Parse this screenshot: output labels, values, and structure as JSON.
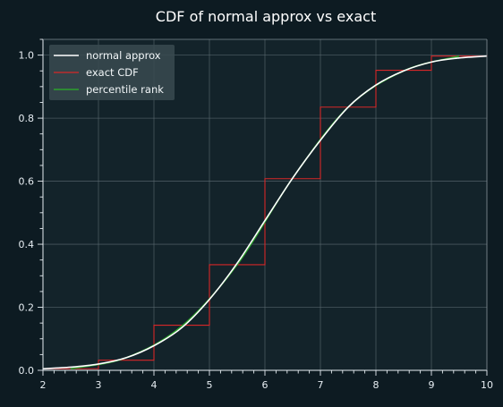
{
  "chart_data": {
    "type": "line",
    "title": "CDF of normal approx vs exact",
    "xlabel": "",
    "ylabel": "",
    "xlim": [
      2,
      10
    ],
    "ylim": [
      0,
      1.05
    ],
    "x_ticks": [
      2,
      3,
      4,
      5,
      6,
      7,
      8,
      9,
      10
    ],
    "x_tick_labels": [
      "2",
      "3",
      "4",
      "5",
      "6",
      "7",
      "8",
      "9",
      "10"
    ],
    "y_ticks": [
      0.0,
      0.2,
      0.4,
      0.6,
      0.8,
      1.0
    ],
    "y_tick_labels": [
      "0.0",
      "0.2",
      "0.4",
      "0.6",
      "0.8",
      "1.0"
    ],
    "grid": true,
    "legend_position": "top-left",
    "colors": {
      "background": "#0d1b22",
      "plot_background": "#13232a",
      "grid": "#5b6a70",
      "normal": "#ffffff",
      "exact": "#d62728",
      "percentile": "#2ca02c",
      "legend_background": "#3a4a50"
    },
    "series": [
      {
        "name": "normal approx",
        "style": "line",
        "color": "#ffffff",
        "x": [
          2.0,
          2.5,
          3.0,
          3.5,
          4.0,
          4.5,
          5.0,
          5.5,
          6.0,
          6.5,
          7.0,
          7.5,
          8.0,
          8.5,
          9.0,
          9.5,
          10.0
        ],
        "y": [
          0.005,
          0.01,
          0.02,
          0.04,
          0.078,
          0.135,
          0.225,
          0.34,
          0.475,
          0.61,
          0.73,
          0.835,
          0.905,
          0.95,
          0.978,
          0.991,
          0.997
        ]
      },
      {
        "name": "exact CDF",
        "style": "step",
        "color": "#d62728",
        "x": [
          2,
          3,
          4,
          5,
          6,
          7,
          8,
          9,
          10
        ],
        "y": [
          0.005,
          0.032,
          0.143,
          0.335,
          0.608,
          0.835,
          0.952,
          0.997,
          1.0
        ]
      },
      {
        "name": "percentile rank",
        "style": "line",
        "color": "#2ca02c",
        "x": [
          2.5,
          3.5,
          4.5,
          5.5,
          6.5,
          7.5,
          8.5,
          9.5
        ],
        "y": [
          0.005,
          0.04,
          0.14,
          0.335,
          0.61,
          0.835,
          0.95,
          0.997
        ]
      }
    ]
  }
}
